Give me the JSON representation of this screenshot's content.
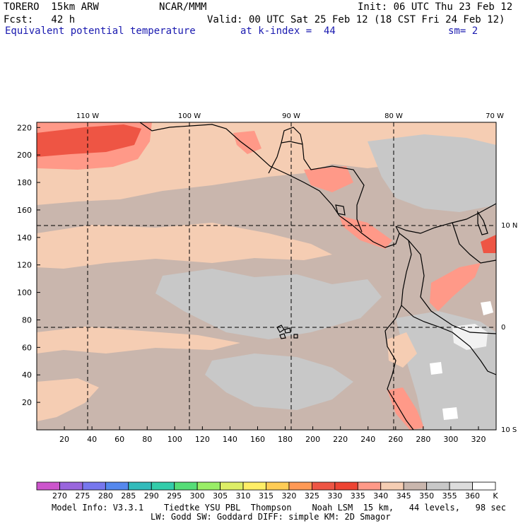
{
  "header": {
    "model": "TORERO  15km ARW",
    "org": "NCAR/MMM",
    "init": "Init: 06 UTC Thu 23 Feb 12",
    "fcst": "Fcst:   42 h",
    "valid": "Valid: 00 UTC Sat 25 Feb 12 (18 CST Fri 24 Feb 12)",
    "field": "Equivalent potential temperature",
    "level": "at k-index =  44",
    "smooth": "sm= 2"
  },
  "map": {
    "lon_labels": [
      "110 W",
      "100 W",
      "90 W",
      "80 W",
      "70 W"
    ],
    "lat_labels": [
      "10 N",
      "0",
      "10 S"
    ],
    "y_ticks": [
      "20",
      "40",
      "60",
      "80",
      "100",
      "120",
      "140",
      "160",
      "180",
      "200",
      "220"
    ],
    "x_ticks": [
      "20",
      "40",
      "60",
      "80",
      "100",
      "120",
      "140",
      "160",
      "180",
      "200",
      "220",
      "240",
      "260",
      "280",
      "300",
      "320"
    ]
  },
  "colorbar": {
    "labels": [
      "270",
      "275",
      "280",
      "285",
      "290",
      "295",
      "300",
      "305",
      "310",
      "315",
      "320",
      "325",
      "330",
      "335",
      "340",
      "345",
      "350",
      "355",
      "360"
    ],
    "unit": "K",
    "colors": [
      "#cc55cc",
      "#9966dd",
      "#7777ee",
      "#5588ee",
      "#33bbbb",
      "#33ccaa",
      "#55dd77",
      "#99ee66",
      "#ddee66",
      "#ffee66",
      "#ffcc55",
      "#ff9955",
      "#ee5544",
      "#ee4433",
      "#ff9988",
      "#f5cdb3",
      "#c9b6ad",
      "#c8c8c8",
      "#dddddd",
      "#ffffff"
    ]
  },
  "footer": {
    "line1": "Model Info: V3.3.1    Tiedtke YSU PBL  Thompson    Noah LSM  15 km,   44 levels,   98 sec",
    "line2": "LW: Godd SW: Goddard DIFF: simple KM: 2D Smagor"
  }
}
